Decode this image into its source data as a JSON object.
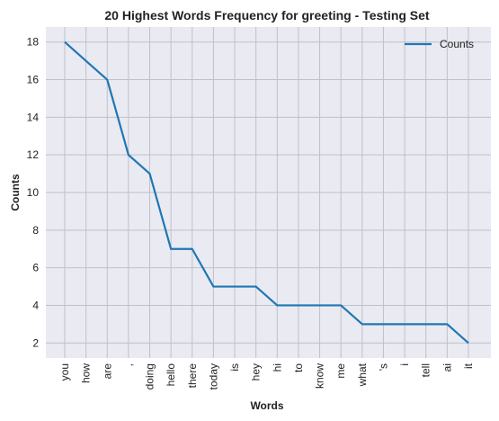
{
  "chart_data": {
    "type": "line",
    "title": "20 Highest Words Frequency for greeting - Testing Set",
    "xlabel": "Words",
    "ylabel": "Counts",
    "categories": [
      "you",
      "how",
      "are",
      ",",
      "doing",
      "hello",
      "there",
      "today",
      "is",
      "hey",
      "hi",
      "to",
      "know",
      "me",
      "what",
      "'s",
      "i",
      "tell",
      "ai",
      "it"
    ],
    "series": [
      {
        "name": "Counts",
        "values": [
          18,
          17,
          16,
          12,
          11,
          7,
          7,
          5,
          5,
          5,
          4,
          4,
          4,
          4,
          3,
          3,
          3,
          3,
          3,
          2
        ]
      }
    ],
    "yticks": [
      2,
      4,
      6,
      8,
      10,
      12,
      14,
      16,
      18
    ],
    "ylim": [
      1.2,
      18.8
    ],
    "grid": true,
    "legend": "top-right",
    "colors": {
      "line": "#1f77b4",
      "plot_bg": "#eaeaf2",
      "grid": "#c0c0c8"
    }
  }
}
